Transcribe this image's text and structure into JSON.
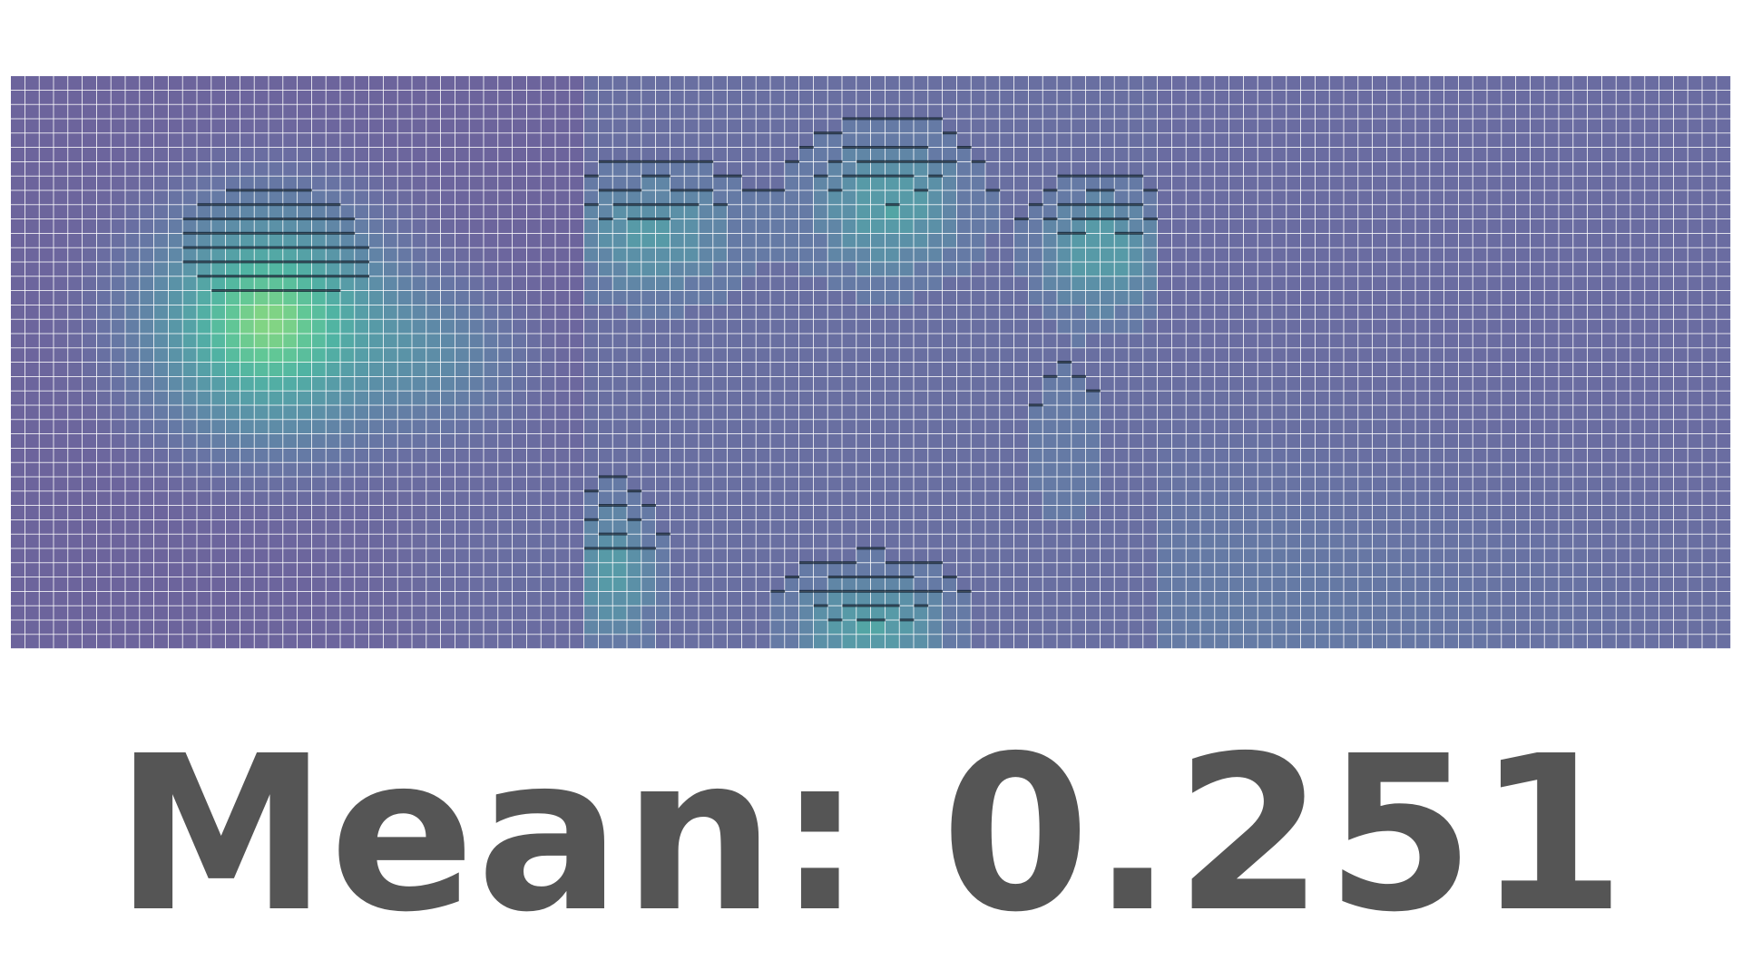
{
  "caption": {
    "label": "Mean:",
    "value": "0.251"
  },
  "colors": {
    "background": "#ffffff",
    "caption_text": "#555555",
    "grid_line": "#ffffff",
    "cell_shadow": "#0a1a2a"
  },
  "chart_data": {
    "type": "heatmap",
    "colormap": "viridis",
    "grid": true,
    "rows": 40,
    "cols": 40,
    "value_range": [
      0,
      1
    ],
    "panels": [
      {
        "name": "",
        "base": 0.22,
        "blobs": [
          {
            "cx": 0.45,
            "cy": 0.43,
            "amp": 0.66,
            "sx": 0.14,
            "sy": 0.13
          },
          {
            "cx": 0.75,
            "cy": 0.49,
            "amp": 0.18,
            "sx": 0.1,
            "sy": 0.08
          },
          {
            "cx": 0.9,
            "cy": 0.85,
            "amp": 0.06,
            "sx": 0.2,
            "sy": 0.2
          }
        ],
        "steps": 0
      },
      {
        "name": "",
        "base": 0.28,
        "blobs": [
          {
            "cx": 0.12,
            "cy": 0.28,
            "amp": 0.28,
            "sx": 0.1,
            "sy": 0.07
          },
          {
            "cx": 0.53,
            "cy": 0.23,
            "amp": 0.33,
            "sx": 0.09,
            "sy": 0.08
          },
          {
            "cx": 0.9,
            "cy": 0.31,
            "amp": 0.33,
            "sx": 0.07,
            "sy": 0.07
          },
          {
            "cx": 0.05,
            "cy": 0.87,
            "amp": 0.3,
            "sx": 0.05,
            "sy": 0.08
          },
          {
            "cx": 0.5,
            "cy": 0.96,
            "amp": 0.34,
            "sx": 0.09,
            "sy": 0.06
          },
          {
            "cx": 0.84,
            "cy": 0.65,
            "amp": 0.1,
            "sx": 0.05,
            "sy": 0.1
          }
        ],
        "steps": 7
      },
      {
        "name": "",
        "base": 0.27,
        "blobs": [
          {
            "cx": 0.05,
            "cy": 0.95,
            "amp": 0.08,
            "sx": 0.25,
            "sy": 0.2
          },
          {
            "cx": 0.5,
            "cy": 0.95,
            "amp": 0.04,
            "sx": 0.3,
            "sy": 0.15
          }
        ],
        "steps": 0
      }
    ]
  }
}
